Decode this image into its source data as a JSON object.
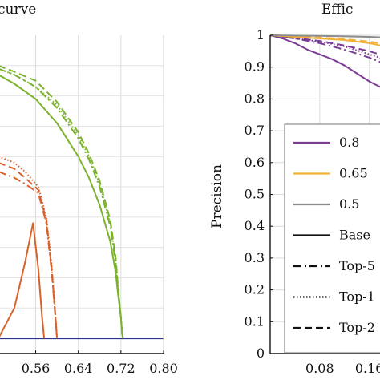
{
  "chart_data": [
    {
      "type": "line",
      "title": "curve",
      "xlabel": "",
      "ylabel": "",
      "xlim": [
        0.49,
        0.8
      ],
      "ylim": [
        -0.05,
        1.0
      ],
      "x_ticks": [
        "0.56",
        "0.64",
        "0.72",
        "0.80"
      ],
      "grid": true,
      "series": [
        {
          "color": "#7cb32e",
          "style": "solid",
          "x": [
            0.49,
            0.52,
            0.56,
            0.6,
            0.64,
            0.66,
            0.68,
            0.7,
            0.71,
            0.715,
            0.72,
            0.722,
            0.724
          ],
          "y": [
            0.87,
            0.84,
            0.79,
            0.71,
            0.6,
            0.53,
            0.44,
            0.32,
            0.22,
            0.14,
            0.07,
            0.02,
            0.0
          ]
        },
        {
          "color": "#7cb32e",
          "style": "dashdot",
          "x": [
            0.49,
            0.52,
            0.56,
            0.6,
            0.64,
            0.66,
            0.68,
            0.7,
            0.71,
            0.715,
            0.72,
            0.722,
            0.724
          ],
          "y": [
            0.89,
            0.87,
            0.83,
            0.76,
            0.66,
            0.59,
            0.5,
            0.37,
            0.25,
            0.15,
            0.07,
            0.02,
            0.0
          ]
        },
        {
          "color": "#7cb32e",
          "style": "dotted",
          "x": [
            0.49,
            0.52,
            0.56,
            0.6,
            0.64,
            0.66,
            0.68,
            0.7,
            0.71,
            0.715,
            0.72,
            0.722,
            0.724
          ],
          "y": [
            0.89,
            0.87,
            0.83,
            0.77,
            0.67,
            0.6,
            0.51,
            0.38,
            0.26,
            0.16,
            0.07,
            0.02,
            0.0
          ]
        },
        {
          "color": "#7cb32e",
          "style": "dashed",
          "x": [
            0.49,
            0.52,
            0.56,
            0.6,
            0.64,
            0.66,
            0.68,
            0.7,
            0.71,
            0.715,
            0.72,
            0.722,
            0.724
          ],
          "y": [
            0.9,
            0.88,
            0.85,
            0.78,
            0.68,
            0.61,
            0.52,
            0.39,
            0.27,
            0.16,
            0.07,
            0.02,
            0.0
          ]
        },
        {
          "color": "#d9622b",
          "style": "solid",
          "x": [
            0.49,
            0.52,
            0.54,
            0.555,
            0.565,
            0.572,
            0.576
          ],
          "y": [
            0.0,
            0.1,
            0.25,
            0.38,
            0.23,
            0.07,
            0.0
          ]
        },
        {
          "color": "#d9622b",
          "style": "dashdot",
          "x": [
            0.49,
            0.52,
            0.54,
            0.565,
            0.58,
            0.59,
            0.597,
            0.6
          ],
          "y": [
            0.55,
            0.53,
            0.51,
            0.48,
            0.38,
            0.22,
            0.07,
            0.0
          ]
        },
        {
          "color": "#d9622b",
          "style": "dotted",
          "x": [
            0.49,
            0.52,
            0.54,
            0.565,
            0.58,
            0.59,
            0.597,
            0.6
          ],
          "y": [
            0.6,
            0.58,
            0.55,
            0.5,
            0.4,
            0.24,
            0.08,
            0.0
          ]
        },
        {
          "color": "#d9622b",
          "style": "dashed",
          "x": [
            0.49,
            0.52,
            0.54,
            0.565,
            0.58,
            0.59,
            0.597,
            0.6
          ],
          "y": [
            0.58,
            0.56,
            0.53,
            0.49,
            0.39,
            0.23,
            0.07,
            0.0
          ]
        },
        {
          "color": "#33368a",
          "style": "solid",
          "x": [
            0.49,
            0.8
          ],
          "y": [
            0.0,
            0.0
          ]
        }
      ]
    },
    {
      "type": "line",
      "title": "Effic",
      "xlabel": "",
      "ylabel": "Precision",
      "xlim": [
        0.0,
        0.185
      ],
      "ylim": [
        0,
        1
      ],
      "x_ticks": [
        "0.08",
        "0.16"
      ],
      "y_ticks": [
        "0",
        "0.1",
        "0.2",
        "0.3",
        "0.4",
        "0.5",
        "0.6",
        "0.7",
        "0.8",
        "0.9",
        "1"
      ],
      "grid": true,
      "legend": {
        "placement": "center",
        "entries": [
          {
            "label": "0.8",
            "color": "#7b3d93",
            "style": "solid"
          },
          {
            "label": "0.65",
            "color": "#f2b134",
            "style": "solid"
          },
          {
            "label": "0.5",
            "color": "#8c8c8c",
            "style": "solid"
          },
          {
            "label": "Base",
            "color": "#111111",
            "style": "solid"
          },
          {
            "label": "Top-5",
            "color": "#111111",
            "style": "dashdot"
          },
          {
            "label": "Top-1",
            "color": "#111111",
            "style": "dotted"
          },
          {
            "label": "Top-2",
            "color": "#111111",
            "style": "dashed"
          }
        ]
      },
      "series": [
        {
          "color": "#7b3d93",
          "style": "solid",
          "x": [
            0.0,
            0.02,
            0.04,
            0.06,
            0.08,
            0.1,
            0.12,
            0.14,
            0.16,
            0.185
          ],
          "y": [
            1.0,
            0.99,
            0.975,
            0.955,
            0.94,
            0.925,
            0.905,
            0.88,
            0.855,
            0.83
          ]
        },
        {
          "color": "#7b3d93",
          "style": "dashdot",
          "x": [
            0.0,
            0.04,
            0.08,
            0.12,
            0.16,
            0.185
          ],
          "y": [
            1.0,
            0.99,
            0.975,
            0.955,
            0.93,
            0.91
          ]
        },
        {
          "color": "#7b3d93",
          "style": "dotted",
          "x": [
            0.0,
            0.04,
            0.08,
            0.12,
            0.16,
            0.185
          ],
          "y": [
            1.0,
            0.99,
            0.98,
            0.965,
            0.94,
            0.925
          ]
        },
        {
          "color": "#7b3d93",
          "style": "dashed",
          "x": [
            0.0,
            0.04,
            0.08,
            0.12,
            0.16,
            0.185
          ],
          "y": [
            1.0,
            0.992,
            0.982,
            0.968,
            0.95,
            0.935
          ]
        },
        {
          "color": "#f2b134",
          "style": "solid",
          "x": [
            0.0,
            0.04,
            0.08,
            0.12,
            0.16,
            0.185
          ],
          "y": [
            1.0,
            0.995,
            0.99,
            0.985,
            0.975,
            0.965
          ]
        },
        {
          "color": "#f2b134",
          "style": "dashed",
          "x": [
            0.0,
            0.04,
            0.08,
            0.12,
            0.16,
            0.185
          ],
          "y": [
            1.0,
            0.997,
            0.993,
            0.988,
            0.98,
            0.972
          ]
        },
        {
          "color": "#8c8c8c",
          "style": "solid",
          "x": [
            0.0,
            0.08,
            0.16,
            0.185
          ],
          "y": [
            1.0,
            0.998,
            0.995,
            0.993
          ]
        }
      ]
    }
  ]
}
